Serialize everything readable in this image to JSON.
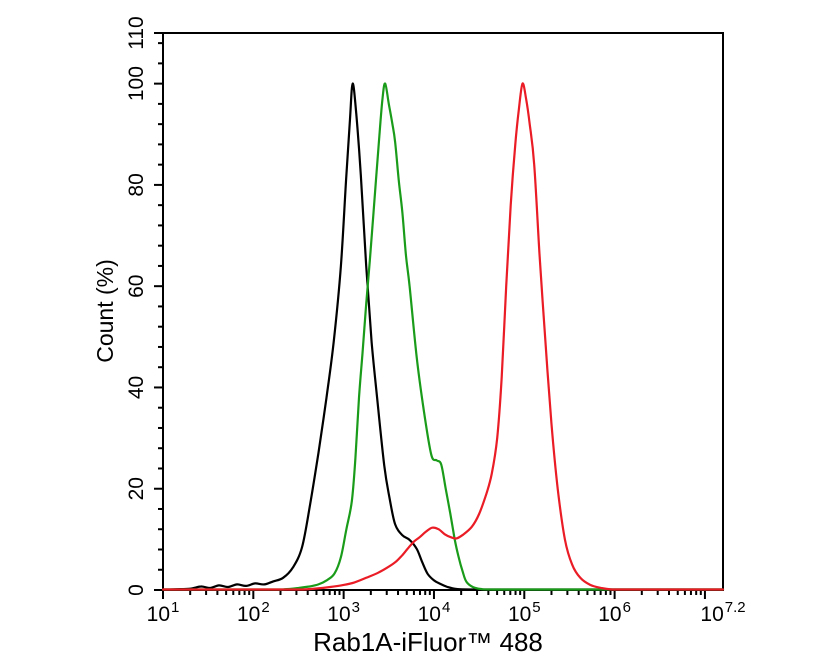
{
  "chart_data": {
    "type": "line",
    "subtype": "flow-cytometry-histogram-overlay",
    "title": "",
    "xlabel": "Rab1A-iFluor™ 488",
    "ylabel": "Count  (%)",
    "background_color": "#ffffff",
    "axis_color": "#000000",
    "grid": false,
    "legend_position": "none",
    "frame": true,
    "x_scale": "log10",
    "x_log_range": [
      1,
      7.2
    ],
    "ylim": [
      0,
      110
    ],
    "y_major_ticks": [
      0,
      20,
      40,
      60,
      80,
      100,
      110
    ],
    "y_minor_step": 4,
    "x_major_tick_logs": [
      1,
      2,
      3,
      4,
      5,
      6,
      7
    ],
    "x_minor_ticks": "log-decade-2-to-9",
    "x_labeled_ticks": [
      {
        "log": 1,
        "base": "10",
        "exp": "1"
      },
      {
        "log": 2,
        "base": "10",
        "exp": "2"
      },
      {
        "log": 3,
        "base": "10",
        "exp": "3"
      },
      {
        "log": 4,
        "base": "10",
        "exp": "4"
      },
      {
        "log": 5,
        "base": "10",
        "exp": "5"
      },
      {
        "log": 6,
        "base": "10",
        "exp": "6"
      },
      {
        "log": 7.2,
        "base": "10",
        "exp": "7.2"
      }
    ],
    "series": [
      {
        "name": "black-histogram",
        "color": "#000000",
        "peak": {
          "log_x": 3.1,
          "count_pct": 100
        },
        "points": [
          [
            1.0,
            0.1
          ],
          [
            1.15,
            0.15
          ],
          [
            1.3,
            0.25
          ],
          [
            1.42,
            0.7
          ],
          [
            1.52,
            0.4
          ],
          [
            1.62,
            0.9
          ],
          [
            1.72,
            0.6
          ],
          [
            1.82,
            1.1
          ],
          [
            1.92,
            0.8
          ],
          [
            2.02,
            1.3
          ],
          [
            2.12,
            1.1
          ],
          [
            2.22,
            1.7
          ],
          [
            2.33,
            2.4
          ],
          [
            2.44,
            4.5
          ],
          [
            2.54,
            8.5
          ],
          [
            2.63,
            17
          ],
          [
            2.72,
            27
          ],
          [
            2.81,
            38
          ],
          [
            2.89,
            49
          ],
          [
            2.97,
            64
          ],
          [
            3.03,
            82
          ],
          [
            3.07,
            93
          ],
          [
            3.1,
            100
          ],
          [
            3.14,
            94
          ],
          [
            3.19,
            82
          ],
          [
            3.25,
            64
          ],
          [
            3.31,
            49
          ],
          [
            3.37,
            38
          ],
          [
            3.45,
            24.5
          ],
          [
            3.51,
            18
          ],
          [
            3.57,
            13
          ],
          [
            3.65,
            10.8
          ],
          [
            3.73,
            9.9
          ],
          [
            3.81,
            8.1
          ],
          [
            3.87,
            5.5
          ],
          [
            3.93,
            3.2
          ],
          [
            4.0,
            1.9
          ],
          [
            4.07,
            1.2
          ],
          [
            4.15,
            0.6
          ],
          [
            4.25,
            0.2
          ],
          [
            4.4,
            0
          ],
          [
            5.0,
            0
          ],
          [
            6.0,
            0
          ],
          [
            7.2,
            0
          ]
        ]
      },
      {
        "name": "green-histogram",
        "color": "#1a9c1a",
        "peak": {
          "log_x": 3.46,
          "count_pct": 100
        },
        "points": [
          [
            1.0,
            0
          ],
          [
            2.2,
            0
          ],
          [
            2.35,
            0.15
          ],
          [
            2.5,
            0.4
          ],
          [
            2.62,
            0.7
          ],
          [
            2.72,
            1.1
          ],
          [
            2.82,
            2.0
          ],
          [
            2.9,
            3.3
          ],
          [
            2.97,
            6.5
          ],
          [
            3.03,
            12
          ],
          [
            3.09,
            17.5
          ],
          [
            3.13,
            26
          ],
          [
            3.17,
            38
          ],
          [
            3.21,
            47
          ],
          [
            3.25,
            56.5
          ],
          [
            3.29,
            65
          ],
          [
            3.33,
            74.5
          ],
          [
            3.39,
            88.5
          ],
          [
            3.43,
            97
          ],
          [
            3.46,
            100
          ],
          [
            3.5,
            96
          ],
          [
            3.54,
            92
          ],
          [
            3.57,
            88.5
          ],
          [
            3.61,
            81
          ],
          [
            3.65,
            74.5
          ],
          [
            3.69,
            66
          ],
          [
            3.73,
            60
          ],
          [
            3.81,
            45.8
          ],
          [
            3.89,
            35.2
          ],
          [
            3.97,
            26.7
          ],
          [
            4.03,
            25.6
          ],
          [
            4.08,
            24.8
          ],
          [
            4.13,
            20
          ],
          [
            4.18,
            15.2
          ],
          [
            4.23,
            10
          ],
          [
            4.27,
            6.7
          ],
          [
            4.32,
            3.5
          ],
          [
            4.36,
            1.6
          ],
          [
            4.43,
            0.6
          ],
          [
            4.52,
            0.2
          ],
          [
            4.66,
            0
          ],
          [
            5.5,
            0
          ],
          [
            7.2,
            0
          ]
        ]
      },
      {
        "name": "red-histogram",
        "color": "#ea1c25",
        "peak": {
          "log_x": 4.98,
          "count_pct": 100
        },
        "secondary_bump": {
          "log_x": 3.98,
          "count_pct": 12.3
        },
        "points": [
          [
            1.0,
            0
          ],
          [
            2.4,
            0
          ],
          [
            2.55,
            0.1
          ],
          [
            2.7,
            0.3
          ],
          [
            2.85,
            0.6
          ],
          [
            3.0,
            1.0
          ],
          [
            3.12,
            1.5
          ],
          [
            3.25,
            2.4
          ],
          [
            3.38,
            3.4
          ],
          [
            3.49,
            4.5
          ],
          [
            3.58,
            5.6
          ],
          [
            3.65,
            6.9
          ],
          [
            3.72,
            8.4
          ],
          [
            3.78,
            9.6
          ],
          [
            3.84,
            10.4
          ],
          [
            3.91,
            11.5
          ],
          [
            3.98,
            12.3
          ],
          [
            4.05,
            12.0
          ],
          [
            4.12,
            11.0
          ],
          [
            4.19,
            10.4
          ],
          [
            4.25,
            10.2
          ],
          [
            4.32,
            10.9
          ],
          [
            4.42,
            12.5
          ],
          [
            4.5,
            15
          ],
          [
            4.58,
            19
          ],
          [
            4.64,
            23
          ],
          [
            4.7,
            30
          ],
          [
            4.75,
            42
          ],
          [
            4.8,
            60
          ],
          [
            4.85,
            76
          ],
          [
            4.9,
            88
          ],
          [
            4.94,
            95
          ],
          [
            4.98,
            100
          ],
          [
            5.02,
            97
          ],
          [
            5.06,
            92
          ],
          [
            5.11,
            84
          ],
          [
            5.17,
            66
          ],
          [
            5.23,
            50
          ],
          [
            5.3,
            33
          ],
          [
            5.37,
            20
          ],
          [
            5.45,
            10
          ],
          [
            5.53,
            5
          ],
          [
            5.62,
            2.4
          ],
          [
            5.73,
            1.0
          ],
          [
            5.85,
            0.4
          ],
          [
            5.97,
            0.1
          ],
          [
            6.1,
            0
          ],
          [
            6.6,
            0
          ],
          [
            7.2,
            0
          ]
        ]
      }
    ]
  }
}
